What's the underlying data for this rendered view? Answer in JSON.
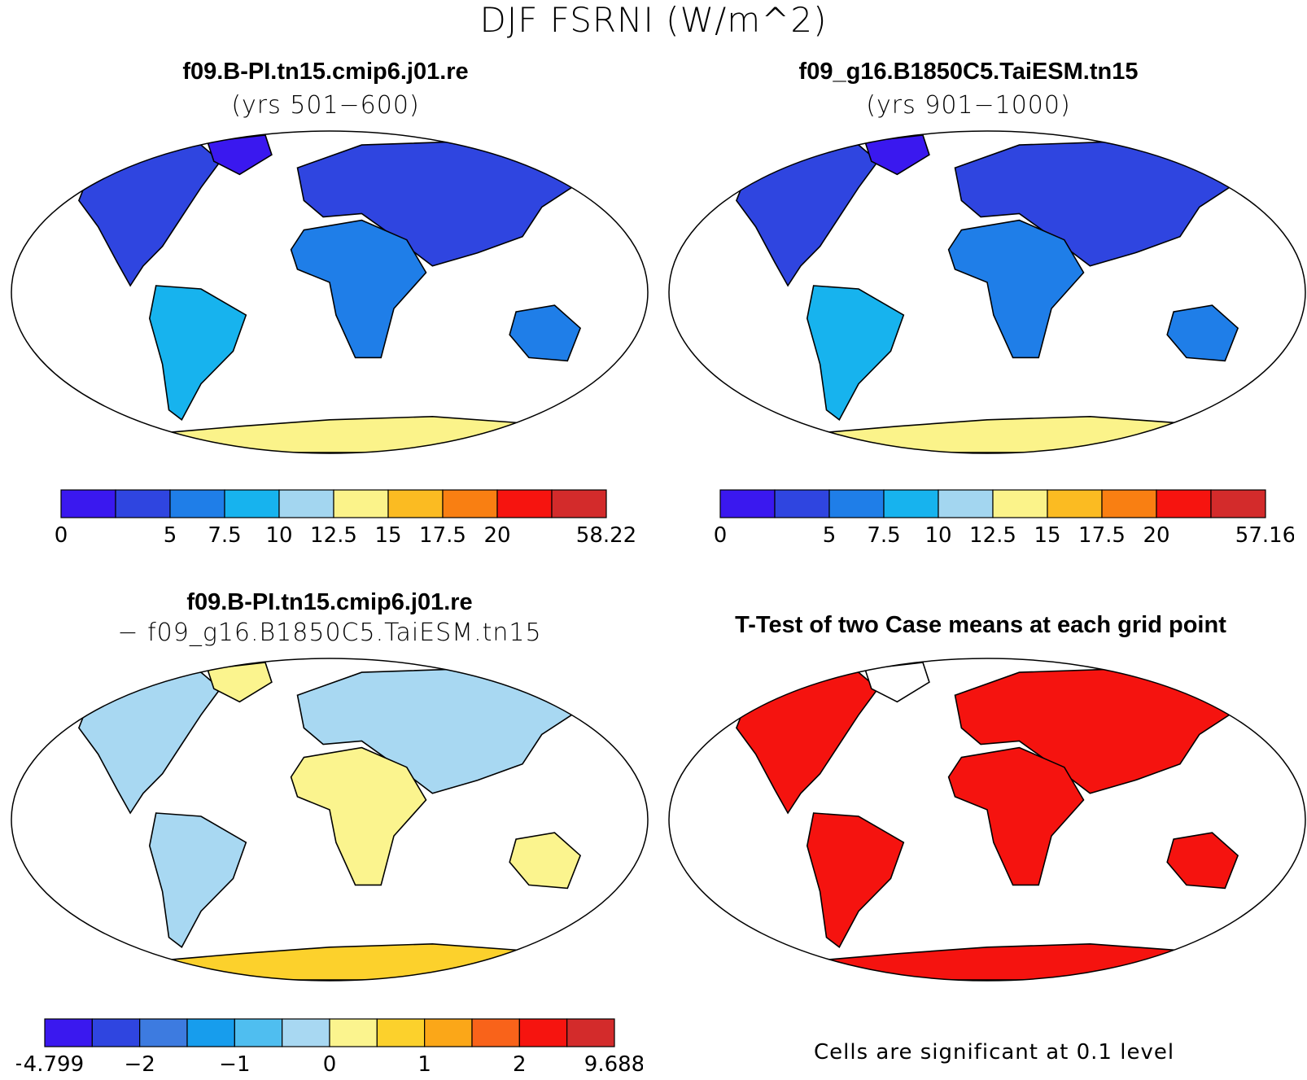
{
  "figure": {
    "title": "DJF FSRNI (W/m^2)",
    "note": "Cells are significant at 0.1 level"
  },
  "colors": {
    "abs_palette": [
      "#3a18ef",
      "#2f45e0",
      "#1f7ee8",
      "#17b3ee",
      "#a3d6f0",
      "#fbf38a",
      "#fbbb22",
      "#f97f12",
      "#f6140f",
      "#d32b2b"
    ],
    "diff_palette": [
      "#3a18ef",
      "#2f45e0",
      "#3d7be0",
      "#179ded",
      "#4fbef0",
      "#a8d8f2",
      "#fbf48e",
      "#fcd12c",
      "#fba718",
      "#f9631a",
      "#f6140f",
      "#d32b2b"
    ],
    "significant": "#f5130f"
  },
  "chart_data": [
    {
      "type": "heatmap",
      "panel": "top-left",
      "title": "f09.B-PI.tn15.cmip6.j01.re",
      "subtitle": "(yrs 501−600)",
      "colorbar": {
        "boundaries": [
          "0",
          "",
          "5",
          "7.5",
          "10",
          "12.5",
          "15",
          "17.5",
          "20",
          "",
          "58.22"
        ],
        "min": 0,
        "max": 58.22
      }
    },
    {
      "type": "heatmap",
      "panel": "top-right",
      "title": "f09_g16.B1850C5.TaiESM.tn15",
      "subtitle": "(yrs 901−1000)",
      "colorbar": {
        "boundaries": [
          "0",
          "",
          "5",
          "7.5",
          "10",
          "12.5",
          "15",
          "17.5",
          "20",
          "",
          "57.16"
        ],
        "min": 0,
        "max": 57.16
      }
    },
    {
      "type": "heatmap",
      "panel": "bottom-left",
      "title": "f09.B-PI.tn15.cmip6.j01.re",
      "subtitle": "− f09_g16.B1850C5.TaiESM.tn15",
      "colorbar": {
        "boundaries": [
          "−4.799",
          "",
          "−2",
          "",
          "−1",
          "",
          "0",
          "",
          "1",
          "",
          "2",
          "",
          "9.688"
        ],
        "min": -4.799,
        "max": 9.688
      }
    },
    {
      "type": "heatmap",
      "panel": "bottom-right",
      "title": "T-Test of two Case means at each grid point"
    }
  ]
}
